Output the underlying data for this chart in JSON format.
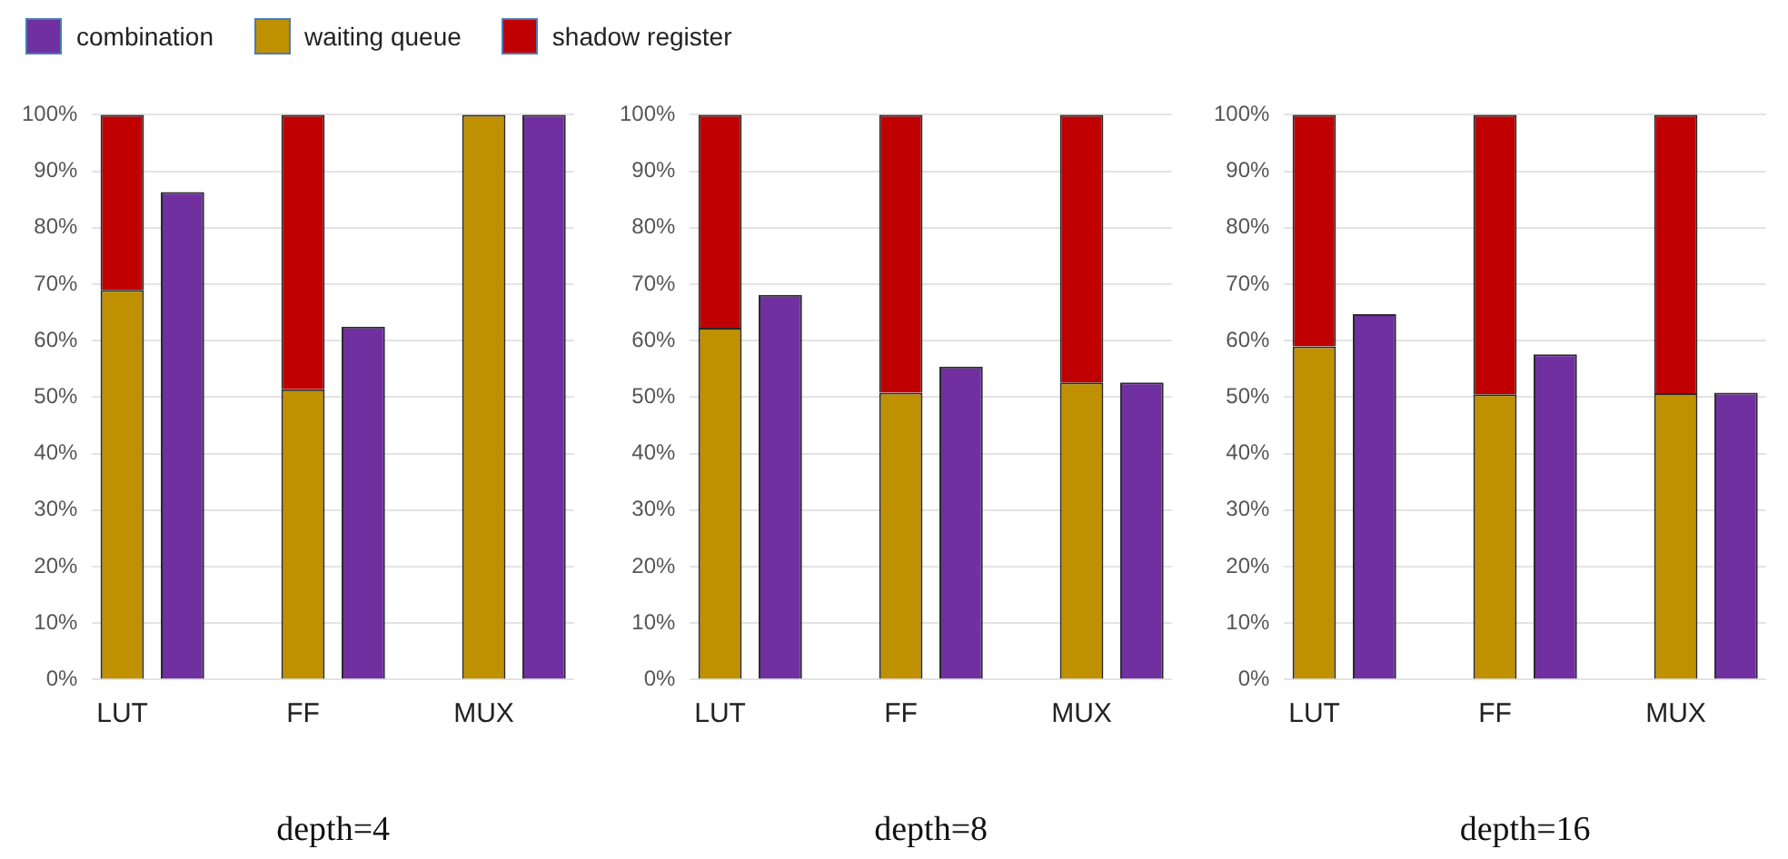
{
  "chart_data": [
    {
      "type": "bar",
      "xlabel": "depth=4",
      "categories": [
        "LUT",
        null,
        null,
        "FF",
        null,
        null,
        "MUX",
        null
      ],
      "stacked": true,
      "legend": "top",
      "grid": "y",
      "ylim": [
        0,
        100
      ],
      "yticks": [
        {
          "value": 0,
          "label": "0%"
        },
        {
          "value": 10,
          "label": "10%"
        },
        {
          "value": 20,
          "label": "20%"
        },
        {
          "value": 30,
          "label": "30%"
        },
        {
          "value": 40,
          "label": "40%"
        },
        {
          "value": 50,
          "label": "50%"
        },
        {
          "value": 60,
          "label": "60%"
        },
        {
          "value": 70,
          "label": "70%"
        },
        {
          "value": 80,
          "label": "80%"
        },
        {
          "value": 90,
          "label": "90%"
        },
        {
          "value": 100,
          "label": "100%"
        }
      ],
      "series": [
        {
          "name": "combination",
          "color": "#7030a0",
          "values": [
            null,
            86.3,
            null,
            null,
            62.5,
            null,
            null,
            100
          ]
        },
        {
          "name": "waiting queue",
          "color": "#bf9000",
          "values": [
            69,
            null,
            null,
            51.4,
            null,
            null,
            100,
            null
          ]
        },
        {
          "name": "shadow register",
          "color": "#c00000",
          "values": [
            31,
            null,
            null,
            48.6,
            null,
            null,
            0,
            null
          ]
        }
      ]
    },
    {
      "type": "bar",
      "xlabel": "depth=8",
      "categories": [
        "LUT",
        null,
        null,
        "FF",
        null,
        null,
        "MUX",
        null
      ],
      "stacked": true,
      "grid": "y",
      "ylim": [
        0,
        100
      ],
      "yticks": [
        {
          "value": 0,
          "label": "0%"
        },
        {
          "value": 10,
          "label": "10%"
        },
        {
          "value": 20,
          "label": "20%"
        },
        {
          "value": 30,
          "label": "30%"
        },
        {
          "value": 40,
          "label": "40%"
        },
        {
          "value": 50,
          "label": "50%"
        },
        {
          "value": 60,
          "label": "60%"
        },
        {
          "value": 70,
          "label": "70%"
        },
        {
          "value": 80,
          "label": "80%"
        },
        {
          "value": 90,
          "label": "90%"
        },
        {
          "value": 100,
          "label": "100%"
        }
      ],
      "series": [
        {
          "color": "#7030a0",
          "values": [
            null,
            68.1,
            null,
            null,
            55.4,
            null,
            null,
            52.6
          ]
        },
        {
          "color": "#bf9000",
          "values": [
            62.3,
            null,
            null,
            50.8,
            null,
            null,
            52.6,
            null
          ]
        },
        {
          "color": "#c00000",
          "values": [
            37.7,
            null,
            null,
            49.2,
            null,
            null,
            47.4,
            null
          ]
        }
      ]
    },
    {
      "type": "bar",
      "xlabel": "depth=16",
      "categories": [
        "LUT",
        null,
        null,
        "FF",
        null,
        null,
        "MUX",
        null
      ],
      "stacked": true,
      "grid": "y",
      "ylim": [
        0,
        100
      ],
      "yticks": [
        {
          "value": 0,
          "label": "0%"
        },
        {
          "value": 10,
          "label": "10%"
        },
        {
          "value": 20,
          "label": "20%"
        },
        {
          "value": 30,
          "label": "30%"
        },
        {
          "value": 40,
          "label": "40%"
        },
        {
          "value": 50,
          "label": "50%"
        },
        {
          "value": 60,
          "label": "60%"
        },
        {
          "value": 70,
          "label": "70%"
        },
        {
          "value": 80,
          "label": "80%"
        },
        {
          "value": 90,
          "label": "90%"
        },
        {
          "value": 100,
          "label": "100%"
        }
      ],
      "series": [
        {
          "color": "#7030a0",
          "values": [
            null,
            64.7,
            null,
            null,
            57.6,
            null,
            null,
            50.8
          ]
        },
        {
          "color": "#bf9000",
          "values": [
            59,
            null,
            null,
            50.5,
            null,
            null,
            50.7,
            null
          ]
        },
        {
          "color": "#c00000",
          "values": [
            41,
            null,
            null,
            49.5,
            null,
            null,
            49.3,
            null
          ]
        }
      ]
    }
  ]
}
